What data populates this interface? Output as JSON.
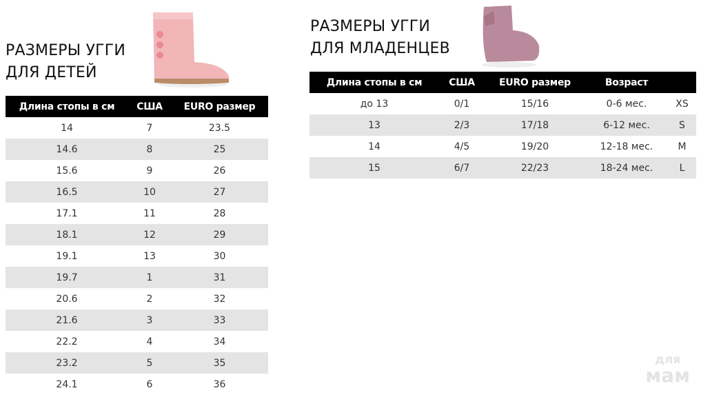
{
  "kids": {
    "title_line1": "РАЗМЕРЫ УГГИ",
    "title_line2": "ДЛЯ ДЕТЕЙ",
    "columns": [
      "Длина стопы в см",
      "США",
      "EURO размер"
    ],
    "rows": [
      [
        "14",
        "7",
        "23.5"
      ],
      [
        "14.6",
        "8",
        "25"
      ],
      [
        "15.6",
        "9",
        "26"
      ],
      [
        "16.5",
        "10",
        "27"
      ],
      [
        "17.1",
        "11",
        "28"
      ],
      [
        "18.1",
        "12",
        "29"
      ],
      [
        "19.1",
        "13",
        "30"
      ],
      [
        "19.7",
        "1",
        "31"
      ],
      [
        "20.6",
        "2",
        "32"
      ],
      [
        "21.6",
        "3",
        "33"
      ],
      [
        "22.2",
        "4",
        "34"
      ],
      [
        "23.2",
        "5",
        "35"
      ],
      [
        "24.1",
        "6",
        "36"
      ]
    ]
  },
  "infants": {
    "title_line1": "РАЗМЕРЫ УГГИ",
    "title_line2": "ДЛЯ МЛАДЕНЦЕВ",
    "columns": [
      "Длина стопы в см",
      "США",
      "EURO размер",
      "Возраст",
      ""
    ],
    "rows": [
      [
        "до 13",
        "0/1",
        "15/16",
        "0-6 мес.",
        "XS"
      ],
      [
        "13",
        "2/3",
        "17/18",
        "6-12 мес.",
        "S"
      ],
      [
        "14",
        "4/5",
        "19/20",
        "12-18 мес.",
        "M"
      ],
      [
        "15",
        "6/7",
        "22/23",
        "18-24 мес.",
        "L"
      ]
    ]
  },
  "watermark": {
    "line1": "для",
    "line2": "мам"
  },
  "colors": {
    "header_bg": "#000000",
    "stripe": "#e4e4e4",
    "kids_boot": "#f2b5b8",
    "infant_boot": "#b98a9c"
  }
}
